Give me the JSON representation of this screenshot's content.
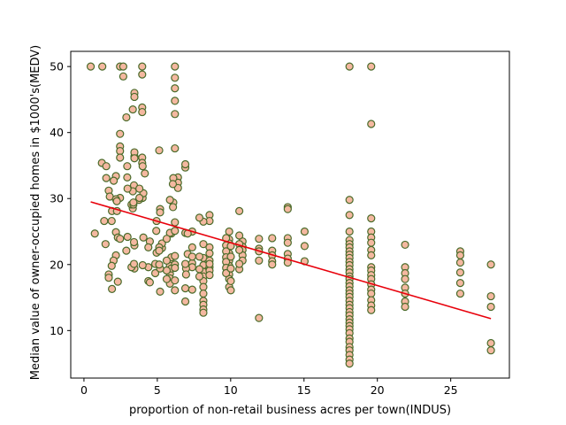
{
  "chart_data": {
    "type": "scatter",
    "title": "",
    "xlabel": "proportion of non-retail business acres per town(INDUS)",
    "ylabel": "Median value of owner-occupied homes in $1000's(MEDV)",
    "xlim": [
      -0.9,
      29.0
    ],
    "ylim": [
      2.8,
      52.3
    ],
    "xticks": [
      0,
      5,
      10,
      15,
      20,
      25
    ],
    "yticks": [
      10,
      20,
      30,
      40,
      50
    ],
    "grid": false,
    "legend": "none",
    "colors": {
      "marker_fill": "#f4b8a0",
      "marker_edge": "#4a6b2a",
      "fit_line": "#e8000b"
    },
    "fit_line": {
      "x": [
        0.46,
        27.74
      ],
      "y": [
        29.5,
        11.8
      ]
    },
    "points": [
      [
        0.46,
        50
      ],
      [
        1.25,
        50
      ],
      [
        2.46,
        50
      ],
      [
        2.68,
        50
      ],
      [
        3.97,
        50
      ],
      [
        3.97,
        48.8
      ],
      [
        6.2,
        50
      ],
      [
        6.2,
        48.3
      ],
      [
        6.2,
        46.7
      ],
      [
        6.2,
        44.8
      ],
      [
        2.89,
        42.3
      ],
      [
        3.97,
        43.8
      ],
      [
        3.97,
        43.1
      ],
      [
        6.2,
        42.8
      ],
      [
        3.33,
        43.5
      ],
      [
        3.44,
        46
      ],
      [
        3.44,
        45.4
      ],
      [
        2.68,
        48.5
      ],
      [
        6.2,
        37.6
      ],
      [
        5.13,
        37.3
      ],
      [
        2.46,
        39.8
      ],
      [
        2.46,
        37.9
      ],
      [
        2.46,
        37.2
      ],
      [
        3.44,
        36.4
      ],
      [
        3.44,
        37
      ],
      [
        3.44,
        36.1
      ],
      [
        3.97,
        36.2
      ],
      [
        3.97,
        35.4
      ],
      [
        2.46,
        36.2
      ],
      [
        1.22,
        35.4
      ],
      [
        1.52,
        34.9
      ],
      [
        1.52,
        33.1
      ],
      [
        2.18,
        33.4
      ],
      [
        2.95,
        33.2
      ],
      [
        2.95,
        34.9
      ],
      [
        3.41,
        32
      ],
      [
        4,
        34.9
      ],
      [
        4.15,
        33.8
      ],
      [
        6.41,
        33.2
      ],
      [
        6.41,
        32.4
      ],
      [
        6.91,
        34.7
      ],
      [
        6.91,
        35.2
      ],
      [
        6.41,
        31.6
      ],
      [
        6.09,
        33.1
      ],
      [
        6.09,
        29.4
      ],
      [
        6.07,
        28.7
      ],
      [
        3.33,
        31.1
      ],
      [
        3.33,
        28.5
      ],
      [
        4,
        30.1
      ],
      [
        5.86,
        29.8
      ],
      [
        5.19,
        28.4
      ],
      [
        5.19,
        27.9
      ],
      [
        4.05,
        30.8
      ],
      [
        3.24,
        29.1
      ],
      [
        2.46,
        30.1
      ],
      [
        2.97,
        31.5
      ],
      [
        3.75,
        29.8
      ],
      [
        6.06,
        32.2
      ],
      [
        1.69,
        31.2
      ],
      [
        1.76,
        30.3
      ],
      [
        2.03,
        32.7
      ],
      [
        1.91,
        28.1
      ],
      [
        2.25,
        28.1
      ],
      [
        2.18,
        29.9
      ],
      [
        2.24,
        29.6
      ],
      [
        3.37,
        29.1
      ],
      [
        3.37,
        29.4
      ],
      [
        3.78,
        31.5
      ],
      [
        3.78,
        30.1
      ],
      [
        0.74,
        24.7
      ],
      [
        1.89,
        26.6
      ],
      [
        1.38,
        26.6
      ],
      [
        1.47,
        23.1
      ],
      [
        2.18,
        24.9
      ],
      [
        2.31,
        24.1
      ],
      [
        2.46,
        23.9
      ],
      [
        2.97,
        24.2
      ],
      [
        3.44,
        22.9
      ],
      [
        4.05,
        24.1
      ],
      [
        4.49,
        23.5
      ],
      [
        5.96,
        24.7
      ],
      [
        5.86,
        24.8
      ],
      [
        5.32,
        22.5
      ],
      [
        5.32,
        23.2
      ],
      [
        4.95,
        26.6
      ],
      [
        4.93,
        25.1
      ],
      [
        5.64,
        23.9
      ],
      [
        5.13,
        22.6
      ],
      [
        6.2,
        26.4
      ],
      [
        6.2,
        25.1
      ],
      [
        6.91,
        24.8
      ],
      [
        7.38,
        25
      ],
      [
        7.07,
        24.7
      ],
      [
        7.07,
        21.6
      ],
      [
        8.14,
        23.1
      ],
      [
        8.14,
        21
      ],
      [
        8.56,
        27.5
      ],
      [
        8.56,
        26.6
      ],
      [
        8.14,
        26.5
      ],
      [
        7.87,
        27.1
      ],
      [
        8.56,
        22.6
      ],
      [
        8.56,
        21.7
      ],
      [
        8.56,
        20.6
      ],
      [
        8.14,
        19.9
      ],
      [
        8.14,
        18.9
      ],
      [
        8.14,
        18.2
      ],
      [
        8.14,
        17.5
      ],
      [
        8.14,
        16.6
      ],
      [
        8.14,
        15.6
      ],
      [
        8.14,
        14.5
      ],
      [
        8.14,
        13.9
      ],
      [
        8.14,
        13.2
      ],
      [
        8.14,
        12.7
      ],
      [
        8.56,
        19.6
      ],
      [
        8.56,
        19.1
      ],
      [
        8.56,
        18.4
      ],
      [
        7.38,
        20.2
      ],
      [
        7.38,
        19.6
      ],
      [
        6.96,
        19.4
      ],
      [
        6.96,
        18.5
      ],
      [
        5.86,
        20.5
      ],
      [
        5.86,
        19.8
      ],
      [
        5.86,
        18.6
      ],
      [
        5.86,
        17.9
      ],
      [
        5.86,
        17.1
      ],
      [
        5.96,
        21.1
      ],
      [
        5.96,
        19.4
      ],
      [
        6.2,
        21.3
      ],
      [
        6.2,
        20
      ],
      [
        6.2,
        19.5
      ],
      [
        6.2,
        17.6
      ],
      [
        6.2,
        16.1
      ],
      [
        5.64,
        20.6
      ],
      [
        5.64,
        19.1
      ],
      [
        5.64,
        17.8
      ],
      [
        4.86,
        20.1
      ],
      [
        4.86,
        18.7
      ],
      [
        4.39,
        19.6
      ],
      [
        4.39,
        17.5
      ],
      [
        4.49,
        17.3
      ],
      [
        5.19,
        15.9
      ],
      [
        5.19,
        19.4
      ],
      [
        3.44,
        19.4
      ],
      [
        3.41,
        23.4
      ],
      [
        3.24,
        19.6
      ],
      [
        2.89,
        22.1
      ],
      [
        2.18,
        21.4
      ],
      [
        2.02,
        20.6
      ],
      [
        1.89,
        19.8
      ],
      [
        1.69,
        18.5
      ],
      [
        1.69,
        18
      ],
      [
        1.91,
        16.3
      ],
      [
        2.31,
        17.4
      ],
      [
        3.41,
        20.1
      ],
      [
        4,
        19.9
      ],
      [
        4.39,
        22.6
      ],
      [
        4.95,
        21.8
      ],
      [
        5.13,
        22.1
      ],
      [
        5.13,
        20
      ],
      [
        6.91,
        20.1
      ],
      [
        7.38,
        22.6
      ],
      [
        7.38,
        21.2
      ],
      [
        7.87,
        21.2
      ],
      [
        7.87,
        18.2
      ],
      [
        6.91,
        16.4
      ],
      [
        6.91,
        14.4
      ],
      [
        7.38,
        16.2
      ],
      [
        7.87,
        19.3
      ],
      [
        8.56,
        20.1
      ],
      [
        9.9,
        25
      ],
      [
        9.9,
        23.8
      ],
      [
        9.9,
        23.2
      ],
      [
        9.9,
        21.7
      ],
      [
        9.9,
        20.6
      ],
      [
        9.9,
        19.8
      ],
      [
        9.9,
        18.5
      ],
      [
        9.9,
        17.8
      ],
      [
        9.9,
        16.6
      ],
      [
        9.69,
        24
      ],
      [
        9.69,
        22.9
      ],
      [
        9.69,
        22
      ],
      [
        9.69,
        21.1
      ],
      [
        9.69,
        20.4
      ],
      [
        9.69,
        19.5
      ],
      [
        9.69,
        18.7
      ],
      [
        10.01,
        19.4
      ],
      [
        10.01,
        17.5
      ],
      [
        10.01,
        16.1
      ],
      [
        10.01,
        21.2
      ],
      [
        10.01,
        22.8
      ],
      [
        10.81,
        23.5
      ],
      [
        10.81,
        22.7
      ],
      [
        10.81,
        22.2
      ],
      [
        10.81,
        21.4
      ],
      [
        10.81,
        20.6
      ],
      [
        10.59,
        28.1
      ],
      [
        10.59,
        24.4
      ],
      [
        10.59,
        23.1
      ],
      [
        10.59,
        22.2
      ],
      [
        10.59,
        19.3
      ],
      [
        10.59,
        20.1
      ],
      [
        11.93,
        22.4
      ],
      [
        11.93,
        20.6
      ],
      [
        11.93,
        23.9
      ],
      [
        11.93,
        22
      ],
      [
        11.93,
        11.9
      ],
      [
        12.83,
        24
      ],
      [
        12.83,
        22.1
      ],
      [
        12.83,
        21.4
      ],
      [
        12.83,
        20.5
      ],
      [
        12.83,
        20
      ],
      [
        13.89,
        28.7
      ],
      [
        13.89,
        28.4
      ],
      [
        13.89,
        24
      ],
      [
        13.89,
        23.3
      ],
      [
        13.89,
        21.6
      ],
      [
        13.89,
        20.9
      ],
      [
        13.89,
        20.3
      ],
      [
        15.04,
        25
      ],
      [
        15.04,
        22.8
      ],
      [
        15.04,
        20.5
      ],
      [
        18.1,
        50
      ],
      [
        18.1,
        29.8
      ],
      [
        18.1,
        27.5
      ],
      [
        18.1,
        25
      ],
      [
        18.1,
        23.7
      ],
      [
        18.1,
        23.1
      ],
      [
        18.1,
        22.6
      ],
      [
        18.1,
        22
      ],
      [
        18.1,
        21.5
      ],
      [
        18.1,
        21
      ],
      [
        18.1,
        20.4
      ],
      [
        18.1,
        19.9
      ],
      [
        18.1,
        19.3
      ],
      [
        18.1,
        18.8
      ],
      [
        18.1,
        18.2
      ],
      [
        18.1,
        17.8
      ],
      [
        18.1,
        17.2
      ],
      [
        18.1,
        16.7
      ],
      [
        18.1,
        16.1
      ],
      [
        18.1,
        15.6
      ],
      [
        18.1,
        15.1
      ],
      [
        18.1,
        14.5
      ],
      [
        18.1,
        13.9
      ],
      [
        18.1,
        13.4
      ],
      [
        18.1,
        12.8
      ],
      [
        18.1,
        12.3
      ],
      [
        18.1,
        11.7
      ],
      [
        18.1,
        11.2
      ],
      [
        18.1,
        10.7
      ],
      [
        18.1,
        10.2
      ],
      [
        18.1,
        9.6
      ],
      [
        18.1,
        8.8
      ],
      [
        18.1,
        8.3
      ],
      [
        18.1,
        7.5
      ],
      [
        18.1,
        7
      ],
      [
        18.1,
        6.3
      ],
      [
        18.1,
        5.6
      ],
      [
        18.1,
        5
      ],
      [
        19.58,
        50
      ],
      [
        19.58,
        41.3
      ],
      [
        19.58,
        27
      ],
      [
        19.58,
        25
      ],
      [
        19.58,
        24.1
      ],
      [
        19.58,
        23.3
      ],
      [
        19.58,
        22.2
      ],
      [
        19.58,
        21.4
      ],
      [
        19.58,
        19.6
      ],
      [
        19.58,
        19.1
      ],
      [
        19.58,
        18.4
      ],
      [
        19.58,
        17.8
      ],
      [
        19.58,
        17
      ],
      [
        19.58,
        16.2
      ],
      [
        19.58,
        15.6
      ],
      [
        19.58,
        14.6
      ],
      [
        19.58,
        13.8
      ],
      [
        19.58,
        13.1
      ],
      [
        21.89,
        23
      ],
      [
        21.89,
        19.6
      ],
      [
        21.89,
        18.7
      ],
      [
        21.89,
        17.8
      ],
      [
        21.89,
        16.5
      ],
      [
        21.89,
        15.6
      ],
      [
        21.89,
        14.4
      ],
      [
        21.89,
        13.6
      ],
      [
        25.65,
        22
      ],
      [
        25.65,
        21.4
      ],
      [
        25.65,
        20.3
      ],
      [
        25.65,
        18.8
      ],
      [
        25.65,
        17.2
      ],
      [
        25.65,
        15.6
      ],
      [
        27.74,
        20
      ],
      [
        27.74,
        15.2
      ],
      [
        27.74,
        13.6
      ],
      [
        27.74,
        8.1
      ],
      [
        27.74,
        7
      ]
    ]
  }
}
